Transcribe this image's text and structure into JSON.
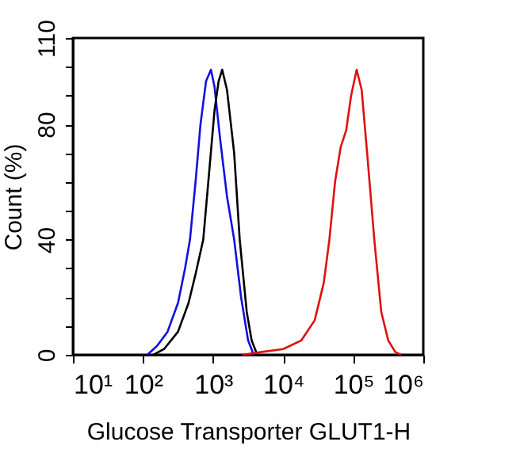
{
  "chart_data": {
    "type": "line",
    "xlabel": "Glucose Transporter GLUT1-H",
    "ylabel": "Count  (%)",
    "log": "x",
    "grid": false,
    "legend": false,
    "marker": "none",
    "xlim": [
      10,
      1000000
    ],
    "xticks": [
      {
        "value": 10,
        "label": "10¹"
      },
      {
        "value": 100,
        "label": "10²"
      },
      {
        "value": 1000,
        "label": "10³"
      },
      {
        "value": 10000,
        "label": "10⁴"
      },
      {
        "value": 100000,
        "label": "10⁵"
      },
      {
        "value": 1000000,
        "label": "10⁶"
      }
    ],
    "ylim": [
      0,
      110
    ],
    "yticks": [
      0,
      {
        "value": 10,
        "label": null
      },
      {
        "value": 20,
        "label": null
      },
      {
        "value": 30,
        "label": null
      },
      40,
      {
        "value": 50,
        "label": null
      },
      {
        "value": 60,
        "label": null
      },
      {
        "value": 70,
        "label": null
      },
      80,
      {
        "value": 90,
        "label": null
      },
      {
        "value": 100,
        "label": null
      },
      110
    ],
    "series": [
      {
        "color": "#1010e0",
        "x": [
          115,
          158,
          224,
          316,
          398,
          468,
          562,
          661,
          794,
          933,
          1050,
          1260,
          1580,
          2000,
          2510,
          3160,
          3800
        ],
        "values": [
          0,
          3,
          8,
          18,
          30,
          40,
          60,
          80,
          95,
          99,
          93,
          75,
          55,
          40,
          20,
          5,
          0
        ]
      },
      {
        "color": "#000000",
        "x": [
          141,
          200,
          316,
          447,
          562,
          724,
          891,
          1050,
          1200,
          1350,
          1580,
          2000,
          2400,
          3020,
          3550,
          4270
        ],
        "values": [
          0,
          2,
          8,
          18,
          28,
          40,
          65,
          85,
          95,
          99,
          92,
          70,
          40,
          15,
          5,
          0
        ]
      },
      {
        "color": "#e01010",
        "x": [
          2630,
          5000,
          10000,
          18200,
          28200,
          38000,
          45700,
          55000,
          66100,
          79400,
          93300,
          112000,
          132000,
          158000,
          200000,
          251000,
          316000,
          398000,
          479000
        ],
        "values": [
          0,
          1,
          2,
          5,
          12,
          25,
          40,
          60,
          72,
          78,
          90,
          99,
          92,
          70,
          40,
          15,
          5,
          1,
          0
        ]
      }
    ]
  }
}
